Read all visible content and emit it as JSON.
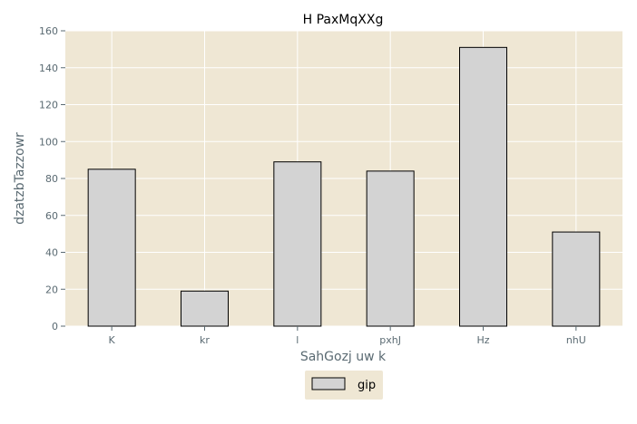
{
  "chart_data": {
    "type": "bar",
    "title": "H PaxMqXXg",
    "xlabel": "SahGozj uw k",
    "ylabel": "dzatzbTazzowr",
    "categories": [
      "K",
      "kr",
      "l",
      "pxhJ",
      "Hz",
      "nhU"
    ],
    "series": [
      {
        "name": "gip",
        "values": [
          85,
          19,
          89,
          84,
          151,
          51
        ]
      }
    ],
    "ylim": [
      0,
      160
    ],
    "yticks": [
      0,
      20,
      40,
      60,
      80,
      100,
      120,
      140,
      160
    ],
    "grid": true,
    "legend": "bottom-center",
    "colors": {
      "plot_background": "#efe7d4",
      "bar_fill": "#d3d3d3",
      "bar_edge": "#000000",
      "grid": "#ffffff",
      "axis_text": "#5a6a72"
    }
  }
}
